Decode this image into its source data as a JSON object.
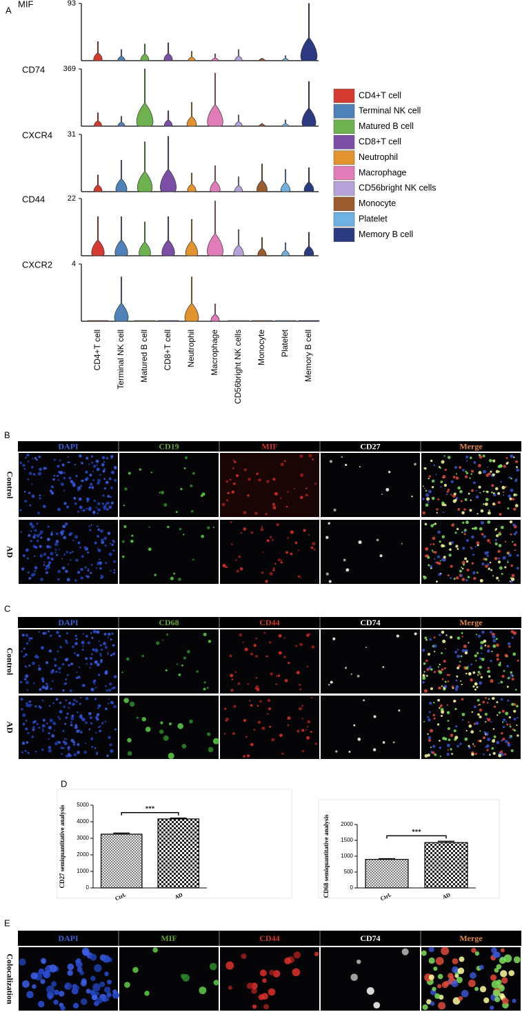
{
  "panel_labels": [
    "A",
    "B",
    "C",
    "D",
    "E"
  ],
  "chart_data": [
    {
      "type": "violin",
      "categories": [
        "CD4+T cell",
        "Terminal NK cell",
        "Matured B cell",
        "CD8+T cell",
        "Neutrophil",
        "Macrophage",
        "CD56bright NK cells",
        "Monocyte",
        "Platelet",
        "Memory B cell"
      ],
      "colors": [
        "#d43a2f",
        "#4f82b8",
        "#6db24f",
        "#7c4ea6",
        "#e3932d",
        "#e07cb8",
        "#b6a2d8",
        "#9a5b2e",
        "#6fb1e2",
        "#2c3a82"
      ],
      "series": [
        {
          "name": "MIF",
          "ylim": [
            0,
            93
          ],
          "yticks": [
            93
          ],
          "values": [
            31,
            18,
            27,
            29,
            15,
            11,
            18,
            4,
            8,
            93
          ]
        },
        {
          "name": "CD74",
          "ylim": [
            0,
            369
          ],
          "yticks": [
            369
          ],
          "values": [
            86,
            63,
            369,
            99,
            153,
            342,
            72,
            18,
            40,
            288
          ]
        },
        {
          "name": "CXCR4",
          "ylim": [
            0,
            31
          ],
          "yticks": [
            31
          ],
          "values": [
            9,
            17,
            27,
            30,
            10,
            14,
            8,
            15,
            12,
            13
          ]
        },
        {
          "name": "CD44",
          "ylim": [
            0,
            22
          ],
          "yticks": [
            22
          ],
          "values": [
            15,
            15,
            13,
            15,
            14,
            21,
            10,
            7,
            5,
            9
          ]
        },
        {
          "name": "CXCR2",
          "ylim": [
            0,
            4
          ],
          "yticks": [
            4
          ],
          "values": [
            0,
            3.1,
            0,
            0,
            3.1,
            1.2,
            0,
            0,
            0,
            0
          ]
        }
      ]
    },
    {
      "type": "bar",
      "y_label": "CD27 semiquantitative analysis",
      "categories": [
        "Ctrl.",
        "AD"
      ],
      "values": [
        3250,
        4170
      ],
      "errors": [
        60,
        50
      ],
      "ylim": [
        0,
        5000
      ],
      "yticks": [
        0,
        1000,
        2000,
        3000,
        4000,
        5000
      ],
      "annotation": "***"
    },
    {
      "type": "bar",
      "y_label": "CD68 semiquantitative analysis",
      "categories": [
        "Ctrl.",
        "AD"
      ],
      "values": [
        900,
        1430
      ],
      "errors": [
        20,
        40
      ],
      "ylim": [
        0,
        2000
      ],
      "yticks": [
        0,
        500,
        1000,
        1500,
        2000
      ],
      "annotation": "***"
    }
  ],
  "microscopy": [
    {
      "channels": [
        "DAPI",
        "CD19",
        "MIF",
        "CD27",
        "Merge"
      ],
      "rows": [
        "Control",
        "AD"
      ]
    },
    {
      "channels": [
        "DAPI",
        "CD68",
        "CD44",
        "CD74",
        "Merge"
      ],
      "rows": [
        "Control",
        "AD"
      ]
    },
    {
      "channels": [
        "DAPI",
        "MIF",
        "CD44",
        "CD74",
        "Merge"
      ],
      "rows": [
        "Colocalization"
      ]
    }
  ]
}
